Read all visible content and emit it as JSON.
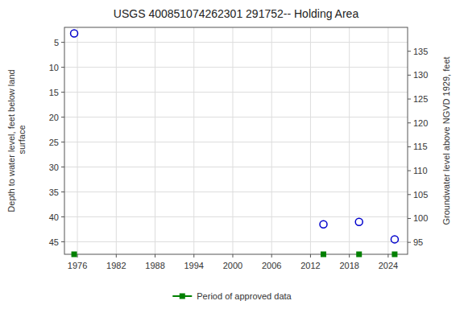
{
  "chart_data": {
    "type": "scatter",
    "title": "USGS 400851074262301 291752-- Holding Area",
    "y_label": "Depth to water level, feet below land\n surface",
    "y2_label": "Groundwater level above NGVD 1929, feet",
    "xlim": [
      1974,
      2027
    ],
    "ylim": [
      47.5,
      2.0
    ],
    "y2lim": [
      92.5,
      140.0
    ],
    "xticks": [
      1976,
      1982,
      1988,
      1994,
      2000,
      2006,
      2012,
      2018,
      2024
    ],
    "yticks": [
      5,
      10,
      15,
      20,
      25,
      30,
      35,
      40,
      45
    ],
    "y2ticks": [
      135,
      130,
      125,
      120,
      115,
      110,
      105,
      100,
      95
    ],
    "grid": true,
    "legend": "bottom",
    "series": [
      {
        "color": "#0000cc",
        "marker": "circle",
        "x": [
          1975.5,
          2014.0,
          2019.5,
          2025.0
        ],
        "values": [
          3.2,
          41.5,
          41.0,
          44.5
        ]
      },
      {
        "name": "Period of approved data",
        "color": "#008000",
        "marker": "square",
        "x": [
          1975.5,
          2014.0,
          2019.5,
          2025.0
        ]
      }
    ]
  }
}
